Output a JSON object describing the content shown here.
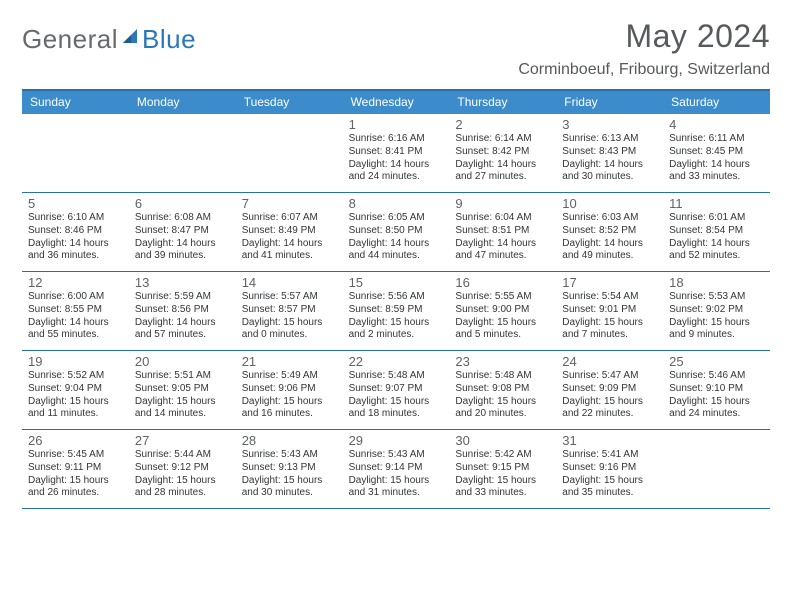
{
  "brand": {
    "part1": "General",
    "part2": "Blue"
  },
  "title": "May 2024",
  "location": "Corminboeuf, Fribourg, Switzerland",
  "colors": {
    "header_bg": "#3c8ccc",
    "header_border": "#2a6fa8",
    "row_border": "#2a6fa8",
    "text_muted": "#565a5d",
    "brand_blue": "#2a77b9",
    "brand_gray": "#666a6d"
  },
  "day_names": [
    "Sunday",
    "Monday",
    "Tuesday",
    "Wednesday",
    "Thursday",
    "Friday",
    "Saturday"
  ],
  "weeks": [
    [
      null,
      null,
      null,
      {
        "n": "1",
        "sr": "6:16 AM",
        "ss": "8:41 PM",
        "dl": "14 hours and 24 minutes."
      },
      {
        "n": "2",
        "sr": "6:14 AM",
        "ss": "8:42 PM",
        "dl": "14 hours and 27 minutes."
      },
      {
        "n": "3",
        "sr": "6:13 AM",
        "ss": "8:43 PM",
        "dl": "14 hours and 30 minutes."
      },
      {
        "n": "4",
        "sr": "6:11 AM",
        "ss": "8:45 PM",
        "dl": "14 hours and 33 minutes."
      }
    ],
    [
      {
        "n": "5",
        "sr": "6:10 AM",
        "ss": "8:46 PM",
        "dl": "14 hours and 36 minutes."
      },
      {
        "n": "6",
        "sr": "6:08 AM",
        "ss": "8:47 PM",
        "dl": "14 hours and 39 minutes."
      },
      {
        "n": "7",
        "sr": "6:07 AM",
        "ss": "8:49 PM",
        "dl": "14 hours and 41 minutes."
      },
      {
        "n": "8",
        "sr": "6:05 AM",
        "ss": "8:50 PM",
        "dl": "14 hours and 44 minutes."
      },
      {
        "n": "9",
        "sr": "6:04 AM",
        "ss": "8:51 PM",
        "dl": "14 hours and 47 minutes."
      },
      {
        "n": "10",
        "sr": "6:03 AM",
        "ss": "8:52 PM",
        "dl": "14 hours and 49 minutes."
      },
      {
        "n": "11",
        "sr": "6:01 AM",
        "ss": "8:54 PM",
        "dl": "14 hours and 52 minutes."
      }
    ],
    [
      {
        "n": "12",
        "sr": "6:00 AM",
        "ss": "8:55 PM",
        "dl": "14 hours and 55 minutes."
      },
      {
        "n": "13",
        "sr": "5:59 AM",
        "ss": "8:56 PM",
        "dl": "14 hours and 57 minutes."
      },
      {
        "n": "14",
        "sr": "5:57 AM",
        "ss": "8:57 PM",
        "dl": "15 hours and 0 minutes."
      },
      {
        "n": "15",
        "sr": "5:56 AM",
        "ss": "8:59 PM",
        "dl": "15 hours and 2 minutes."
      },
      {
        "n": "16",
        "sr": "5:55 AM",
        "ss": "9:00 PM",
        "dl": "15 hours and 5 minutes."
      },
      {
        "n": "17",
        "sr": "5:54 AM",
        "ss": "9:01 PM",
        "dl": "15 hours and 7 minutes."
      },
      {
        "n": "18",
        "sr": "5:53 AM",
        "ss": "9:02 PM",
        "dl": "15 hours and 9 minutes."
      }
    ],
    [
      {
        "n": "19",
        "sr": "5:52 AM",
        "ss": "9:04 PM",
        "dl": "15 hours and 11 minutes."
      },
      {
        "n": "20",
        "sr": "5:51 AM",
        "ss": "9:05 PM",
        "dl": "15 hours and 14 minutes."
      },
      {
        "n": "21",
        "sr": "5:49 AM",
        "ss": "9:06 PM",
        "dl": "15 hours and 16 minutes."
      },
      {
        "n": "22",
        "sr": "5:48 AM",
        "ss": "9:07 PM",
        "dl": "15 hours and 18 minutes."
      },
      {
        "n": "23",
        "sr": "5:48 AM",
        "ss": "9:08 PM",
        "dl": "15 hours and 20 minutes."
      },
      {
        "n": "24",
        "sr": "5:47 AM",
        "ss": "9:09 PM",
        "dl": "15 hours and 22 minutes."
      },
      {
        "n": "25",
        "sr": "5:46 AM",
        "ss": "9:10 PM",
        "dl": "15 hours and 24 minutes."
      }
    ],
    [
      {
        "n": "26",
        "sr": "5:45 AM",
        "ss": "9:11 PM",
        "dl": "15 hours and 26 minutes."
      },
      {
        "n": "27",
        "sr": "5:44 AM",
        "ss": "9:12 PM",
        "dl": "15 hours and 28 minutes."
      },
      {
        "n": "28",
        "sr": "5:43 AM",
        "ss": "9:13 PM",
        "dl": "15 hours and 30 minutes."
      },
      {
        "n": "29",
        "sr": "5:43 AM",
        "ss": "9:14 PM",
        "dl": "15 hours and 31 minutes."
      },
      {
        "n": "30",
        "sr": "5:42 AM",
        "ss": "9:15 PM",
        "dl": "15 hours and 33 minutes."
      },
      {
        "n": "31",
        "sr": "5:41 AM",
        "ss": "9:16 PM",
        "dl": "15 hours and 35 minutes."
      },
      null
    ]
  ],
  "labels": {
    "sunrise": "Sunrise:",
    "sunset": "Sunset:",
    "daylight": "Daylight:"
  }
}
